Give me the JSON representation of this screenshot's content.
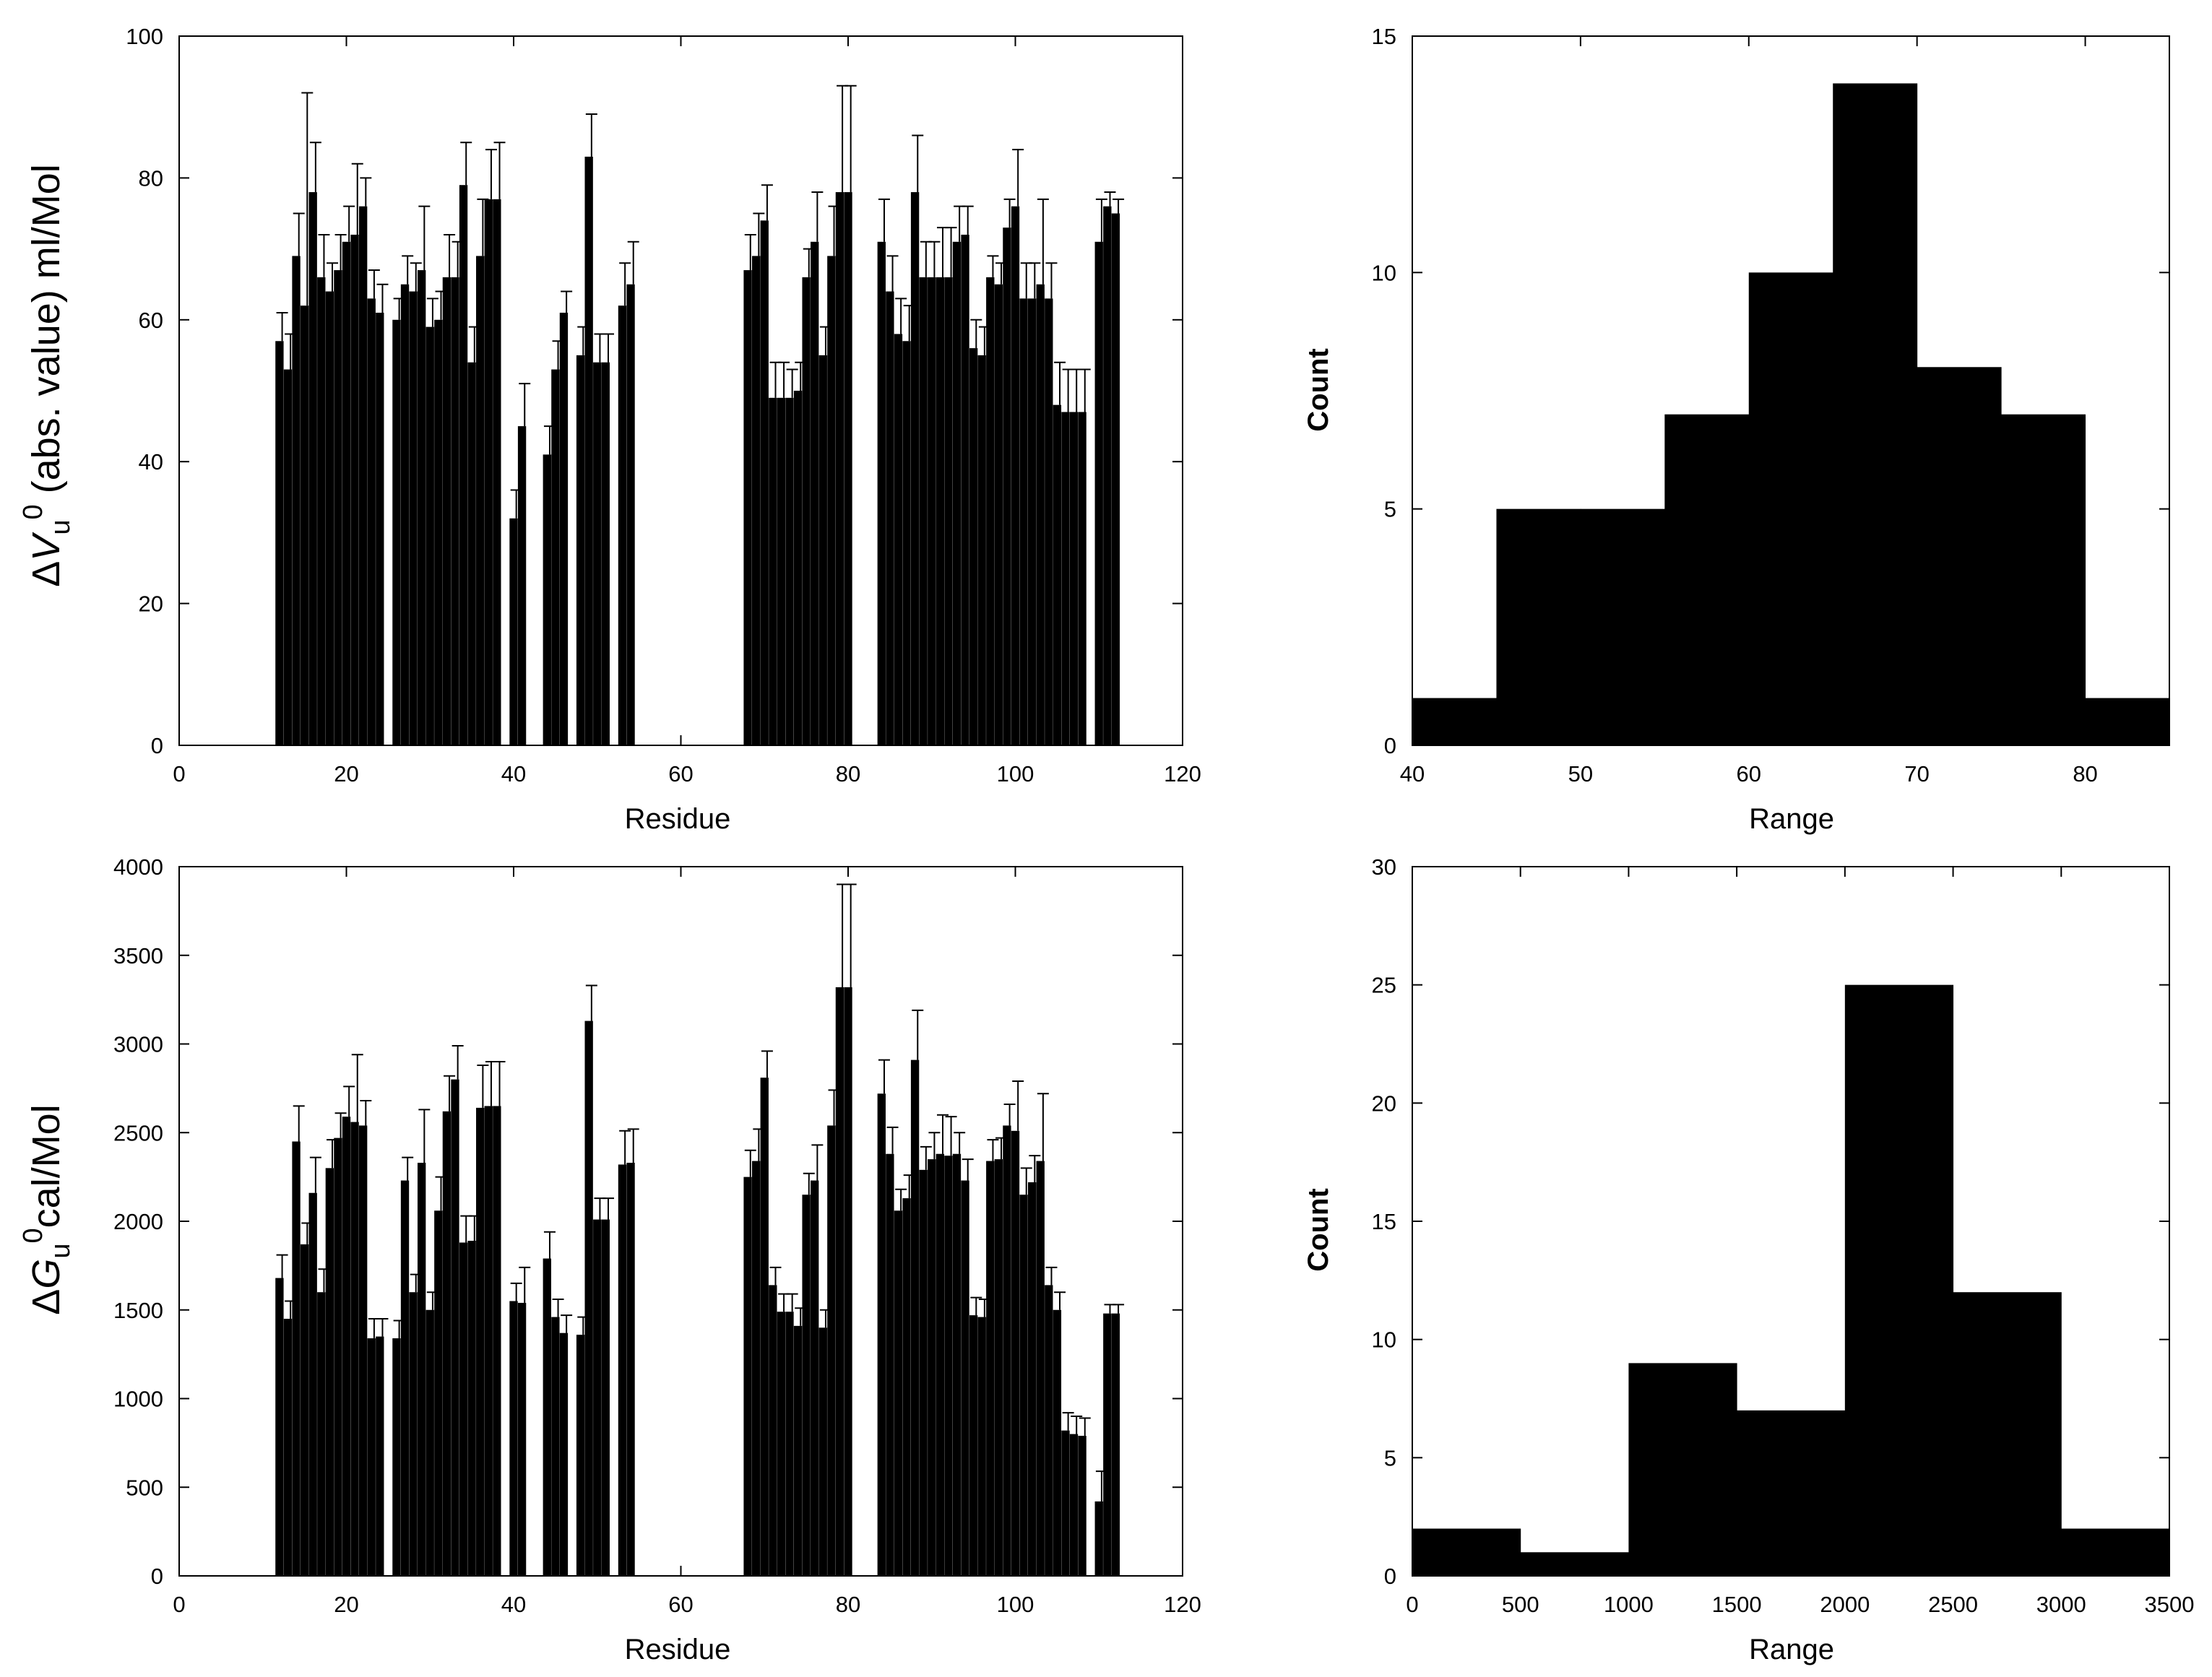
{
  "colors": {
    "bar": "#000000",
    "frame": "#000000",
    "background": "#ffffff"
  },
  "chart_data": [
    {
      "type": "bar",
      "panel": "top-left",
      "ylabel_parts": {
        "delta": "Δ",
        "var": "V",
        "sub": "u",
        "sup": "0",
        "rest": " (abs. value) ml/Mol"
      },
      "xlabel": "Residue",
      "xlim": [
        0,
        120
      ],
      "ylim": [
        0,
        100
      ],
      "xticks": [
        0,
        20,
        40,
        60,
        80,
        100,
        120
      ],
      "yticks": [
        0,
        20,
        40,
        60,
        80,
        100
      ],
      "error_bars": true,
      "x": [
        12,
        13,
        14,
        15,
        16,
        17,
        18,
        19,
        20,
        21,
        22,
        23,
        24,
        26,
        27,
        28,
        29,
        30,
        31,
        32,
        33,
        34,
        35,
        36,
        37,
        38,
        40,
        41,
        44,
        45,
        46,
        48,
        49,
        50,
        51,
        53,
        54,
        68,
        69,
        70,
        71,
        72,
        73,
        74,
        75,
        76,
        77,
        78,
        79,
        80,
        84,
        85,
        86,
        87,
        88,
        89,
        90,
        91,
        92,
        93,
        94,
        95,
        96,
        97,
        98,
        99,
        100,
        101,
        102,
        103,
        104,
        105,
        106,
        107,
        108,
        110,
        111,
        112
      ],
      "values": [
        57,
        53,
        69,
        62,
        78,
        66,
        64,
        67,
        71,
        72,
        76,
        63,
        61,
        60,
        65,
        64,
        67,
        59,
        60,
        66,
        66,
        79,
        54,
        69,
        77,
        77,
        32,
        45,
        41,
        53,
        61,
        55,
        83,
        54,
        54,
        62,
        65,
        67,
        69,
        74,
        49,
        49,
        49,
        50,
        66,
        71,
        55,
        69,
        78,
        78,
        71,
        64,
        58,
        57,
        78,
        66,
        66,
        66,
        66,
        71,
        72,
        56,
        55,
        66,
        65,
        73,
        76,
        63,
        63,
        65,
        63,
        48,
        47,
        47,
        47,
        71,
        76,
        75
      ],
      "errors": [
        4,
        5,
        6,
        30,
        7,
        6,
        4,
        5,
        5,
        10,
        4,
        4,
        4,
        3,
        4,
        4,
        9,
        4,
        4,
        6,
        5,
        6,
        5,
        8,
        7,
        8,
        4,
        6,
        4,
        4,
        3,
        4,
        6,
        4,
        4,
        6,
        6,
        5,
        6,
        5,
        5,
        5,
        4,
        4,
        4,
        7,
        4,
        7,
        15,
        15,
        6,
        5,
        5,
        5,
        8,
        5,
        5,
        7,
        7,
        5,
        4,
        4,
        4,
        3,
        3,
        4,
        8,
        5,
        5,
        12,
        5,
        6,
        6,
        6,
        6,
        6,
        2,
        2
      ]
    },
    {
      "type": "bar",
      "panel": "top-right",
      "ylabel": "Count",
      "xlabel": "Range",
      "xlim": [
        40,
        85
      ],
      "ylim": [
        0,
        15
      ],
      "xticks": [
        40,
        50,
        60,
        70,
        80
      ],
      "yticks": [
        0,
        5,
        10,
        15
      ],
      "bins": [
        [
          40,
          45
        ],
        [
          45,
          50
        ],
        [
          50,
          55
        ],
        [
          55,
          60
        ],
        [
          60,
          65
        ],
        [
          65,
          70
        ],
        [
          70,
          75
        ],
        [
          75,
          80
        ],
        [
          80,
          85
        ]
      ],
      "values": [
        1,
        5,
        5,
        7,
        10,
        14,
        8,
        7,
        1
      ]
    },
    {
      "type": "bar",
      "panel": "bottom-left",
      "ylabel_parts": {
        "delta": "Δ",
        "var": "G",
        "sub": "u",
        "sup": "0",
        "rest": "cal/Mol"
      },
      "xlabel": "Residue",
      "xlim": [
        0,
        120
      ],
      "ylim": [
        0,
        4000
      ],
      "xticks": [
        0,
        20,
        40,
        60,
        80,
        100,
        120
      ],
      "yticks": [
        0,
        500,
        1000,
        1500,
        2000,
        2500,
        3000,
        3500,
        4000
      ],
      "error_bars": true,
      "x": [
        12,
        13,
        14,
        15,
        16,
        17,
        18,
        19,
        20,
        21,
        22,
        23,
        24,
        26,
        27,
        28,
        29,
        30,
        31,
        32,
        33,
        34,
        35,
        36,
        37,
        38,
        40,
        41,
        44,
        45,
        46,
        48,
        49,
        50,
        51,
        53,
        54,
        68,
        69,
        70,
        71,
        72,
        73,
        74,
        75,
        76,
        77,
        78,
        79,
        80,
        84,
        85,
        86,
        87,
        88,
        89,
        90,
        91,
        92,
        93,
        94,
        95,
        96,
        97,
        98,
        99,
        100,
        101,
        102,
        103,
        104,
        105,
        106,
        107,
        108,
        110,
        111,
        112
      ],
      "values": [
        1680,
        1450,
        2450,
        1870,
        2160,
        1600,
        2300,
        2470,
        2590,
        2560,
        2540,
        1340,
        1350,
        1340,
        2230,
        1600,
        2330,
        1500,
        2060,
        2620,
        2800,
        1880,
        1890,
        2640,
        2650,
        2650,
        1550,
        1540,
        1790,
        1460,
        1370,
        1360,
        3130,
        2010,
        2010,
        2320,
        2330,
        2250,
        2340,
        2810,
        1640,
        1490,
        1490,
        1410,
        2150,
        2230,
        1400,
        2540,
        3320,
        3320,
        2720,
        2380,
        2060,
        2130,
        2910,
        2290,
        2350,
        2380,
        2370,
        2380,
        2230,
        1470,
        1460,
        2340,
        2350,
        2540,
        2510,
        2150,
        2220,
        2340,
        1640,
        1500,
        820,
        800,
        790,
        420,
        1480,
        1480
      ],
      "errors": [
        130,
        100,
        200,
        120,
        200,
        130,
        160,
        140,
        170,
        380,
        140,
        110,
        100,
        100,
        130,
        100,
        300,
        100,
        190,
        200,
        190,
        150,
        140,
        240,
        250,
        250,
        100,
        200,
        150,
        100,
        100,
        100,
        200,
        120,
        120,
        190,
        190,
        150,
        180,
        150,
        100,
        100,
        100,
        100,
        120,
        200,
        100,
        200,
        580,
        580,
        190,
        150,
        120,
        130,
        280,
        130,
        150,
        220,
        220,
        120,
        120,
        100,
        100,
        120,
        120,
        120,
        280,
        150,
        150,
        380,
        100,
        100,
        100,
        100,
        100,
        170,
        50,
        50
      ]
    },
    {
      "type": "bar",
      "panel": "bottom-right",
      "ylabel": "Count",
      "xlabel": "Range",
      "xlim": [
        0,
        3500
      ],
      "ylim": [
        0,
        30
      ],
      "xticks": [
        0,
        500,
        1000,
        1500,
        2000,
        2500,
        3000,
        3500
      ],
      "yticks": [
        0,
        5,
        10,
        15,
        20,
        25,
        30
      ],
      "bins": [
        [
          0,
          500
        ],
        [
          500,
          1000
        ],
        [
          1000,
          1500
        ],
        [
          1500,
          2000
        ],
        [
          2000,
          2500
        ],
        [
          2500,
          3000
        ],
        [
          3000,
          3500
        ]
      ],
      "values": [
        2,
        1,
        9,
        7,
        25,
        12,
        2
      ]
    }
  ]
}
